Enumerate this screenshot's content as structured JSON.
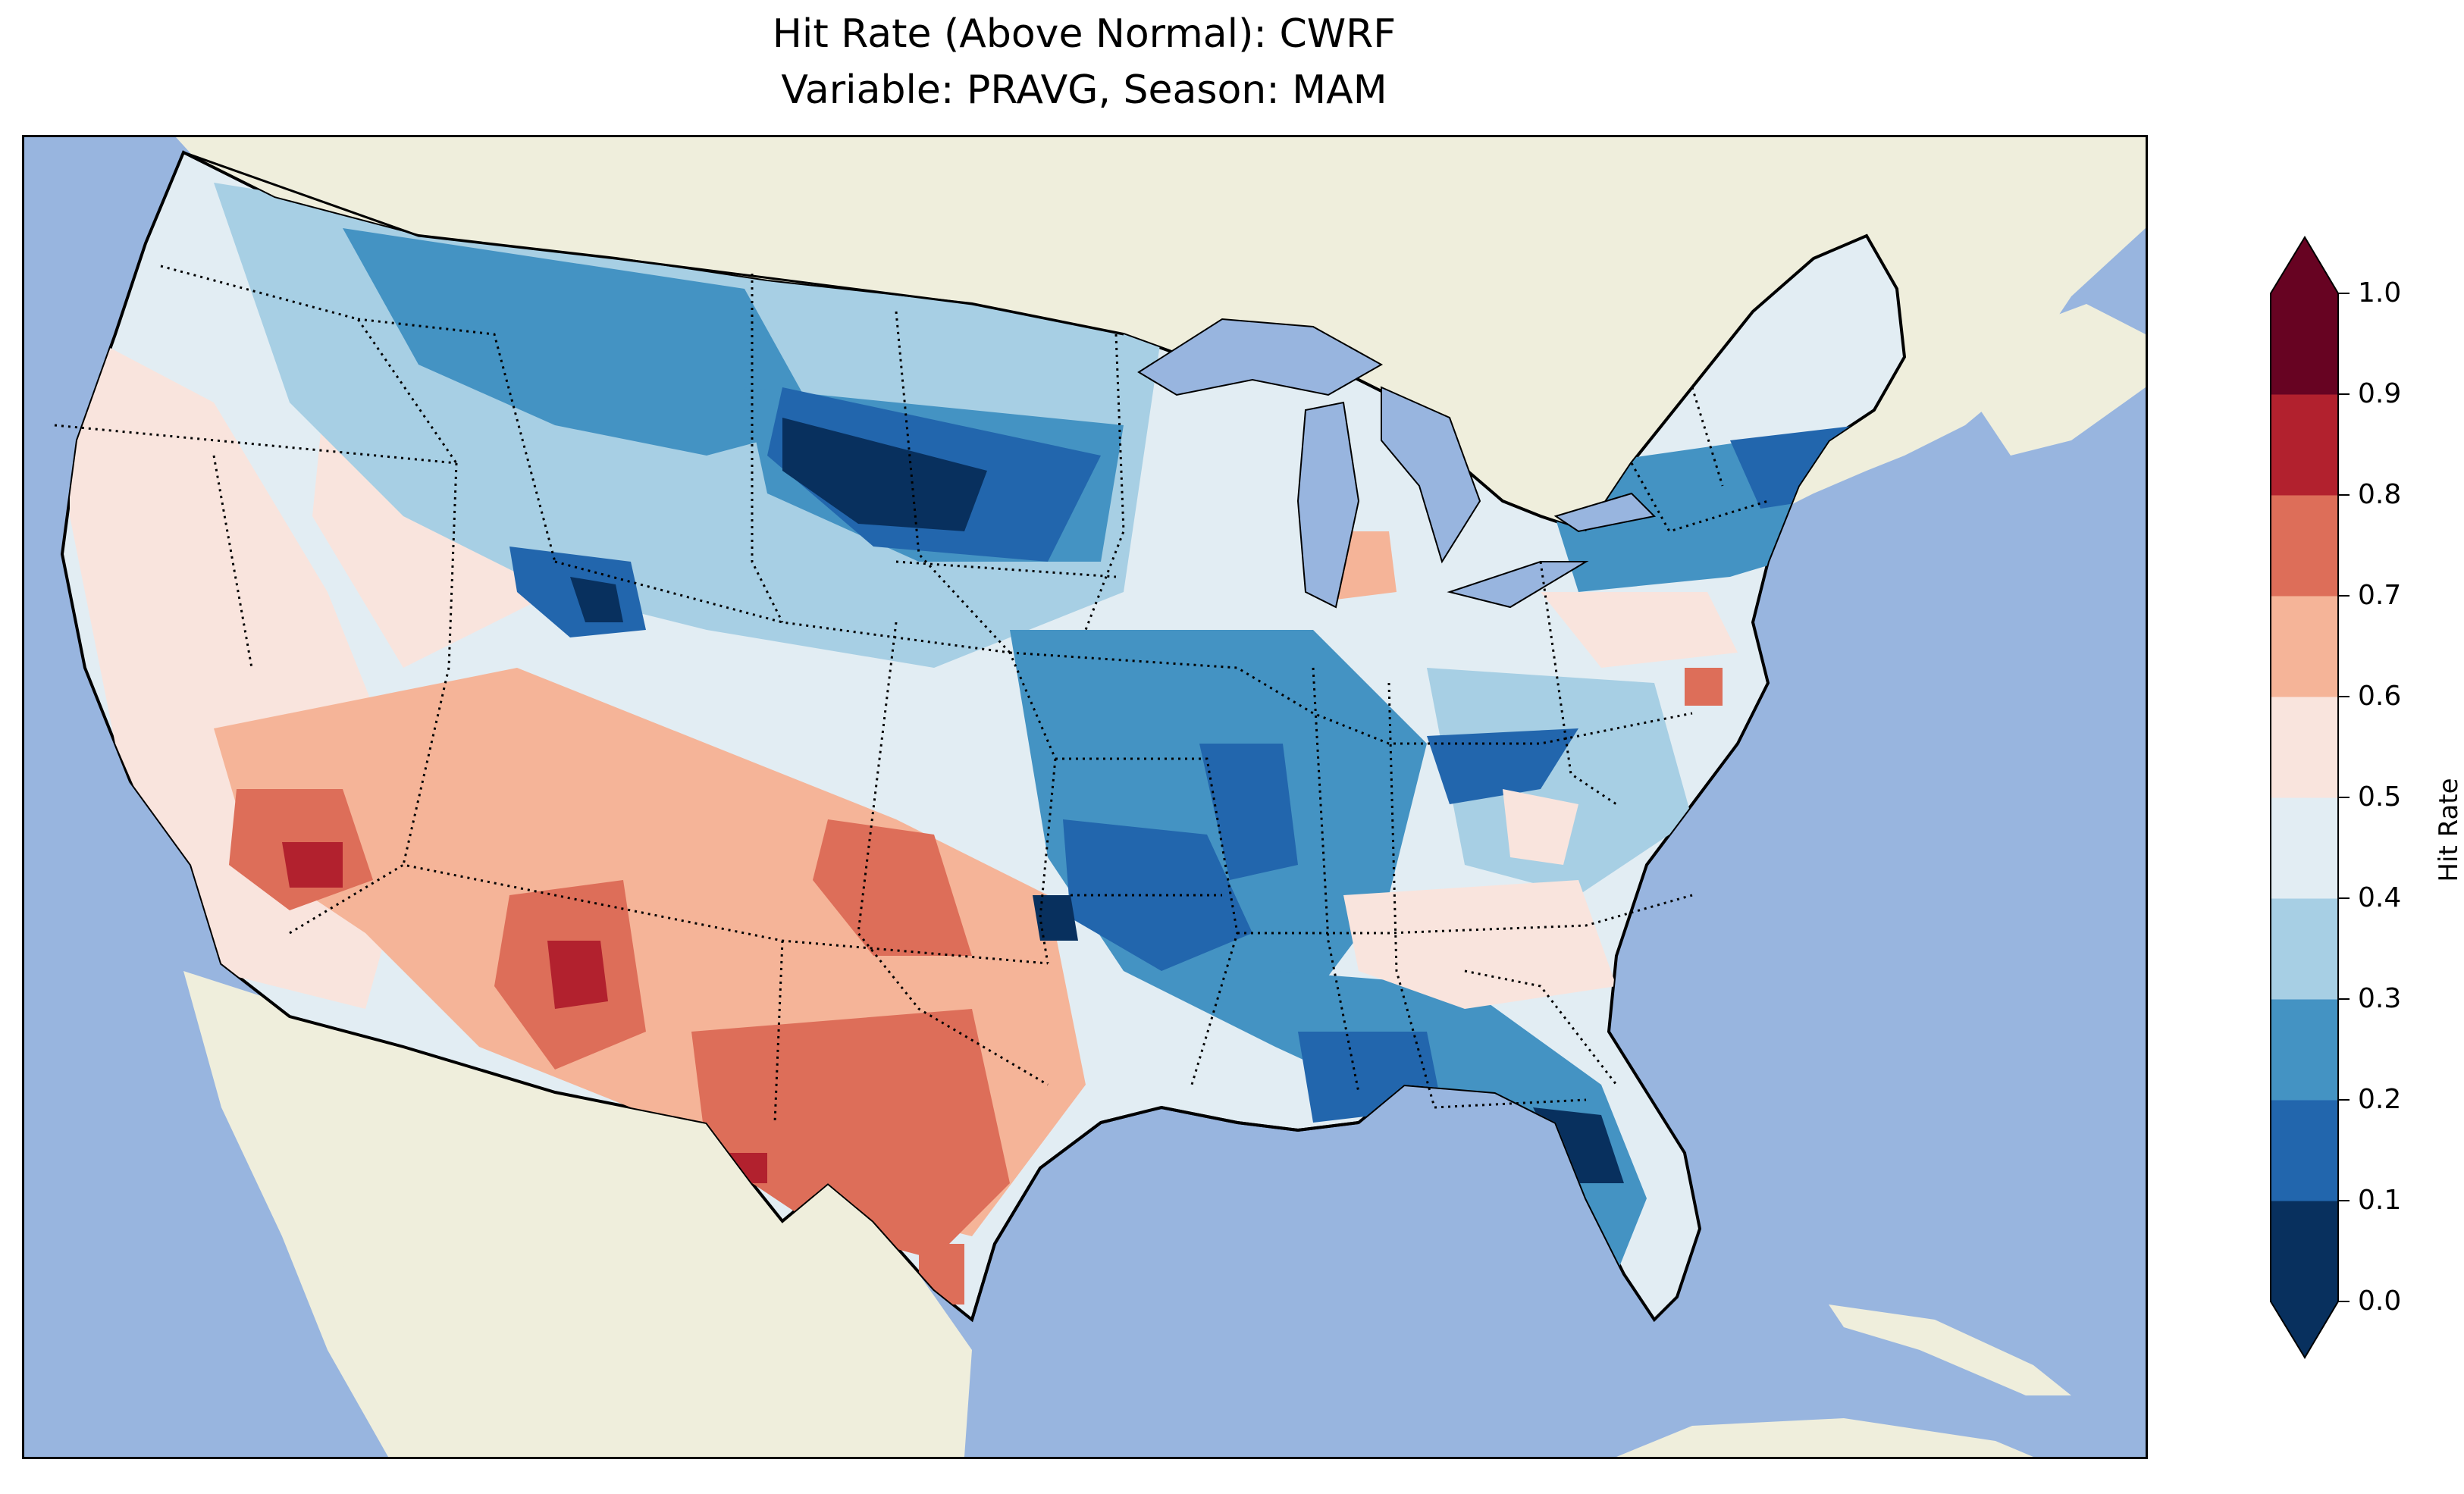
{
  "title": {
    "line1": "Hit Rate (Above Normal): CWRF",
    "line2": "Variable: PRAVG, Season: MAM"
  },
  "colorbar": {
    "label": "Hit Rate",
    "ticks": [
      "0.0",
      "0.1",
      "0.2",
      "0.3",
      "0.4",
      "0.5",
      "0.6",
      "0.7",
      "0.8",
      "0.9",
      "1.0"
    ],
    "bins": [
      {
        "range": "0.0-0.1",
        "color": "#08305e"
      },
      {
        "range": "0.1-0.2",
        "color": "#2266ad"
      },
      {
        "range": "0.2-0.3",
        "color": "#4493c3"
      },
      {
        "range": "0.3-0.4",
        "color": "#a7cfe4"
      },
      {
        "range": "0.4-0.5",
        "color": "#e2edf3"
      },
      {
        "range": "0.5-0.6",
        "color": "#f9e4dd"
      },
      {
        "range": "0.6-0.7",
        "color": "#f5b498"
      },
      {
        "range": "0.7-0.8",
        "color": "#dd6e59"
      },
      {
        "range": "0.8-0.9",
        "color": "#b2212e"
      },
      {
        "range": "0.9-1.0",
        "color": "#670322"
      }
    ],
    "extend_under_color": "#08305e",
    "extend_over_color": "#670322"
  },
  "map": {
    "ocean_color": "#98b5df",
    "land_color": "#efeedc",
    "lake_color": "#98b5df"
  }
}
